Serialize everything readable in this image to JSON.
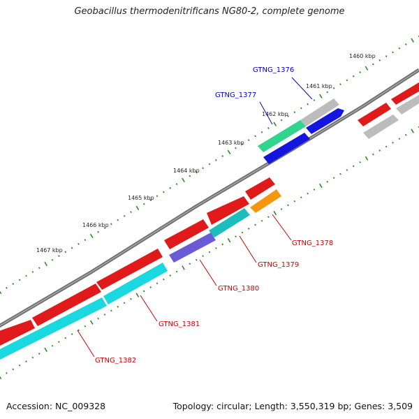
{
  "title": "Geobacillus thermodenitrificans NG80-2, complete genome",
  "footer": {
    "accession": "Accession: NC_009328",
    "summary": "Topology: circular; Length: 3,550,319 bp; Genes: 3,509"
  },
  "colors": {
    "backbone": "#7a7a7a",
    "tick_dots": "#2e8b22",
    "label_forward": "#0000cc",
    "label_reverse": "#cc0000"
  },
  "chart_data": {
    "type": "genome_map",
    "scale_labels": [
      "1460 kbp",
      "1461 kbp",
      "1462 kbp",
      "1463 kbp",
      "1464 kbp",
      "1465 kbp",
      "1466 kbp",
      "1467 kbp"
    ],
    "labeled_genes": [
      {
        "name": "GTNG_1376",
        "strand": "+"
      },
      {
        "name": "GTNG_1377",
        "strand": "+"
      },
      {
        "name": "GTNG_1378",
        "strand": "-"
      },
      {
        "name": "GTNG_1379",
        "strand": "-"
      },
      {
        "name": "GTNG_1380",
        "strand": "-"
      },
      {
        "name": "GTNG_1381",
        "strand": "-"
      },
      {
        "name": "GTNG_1382",
        "strand": "-"
      }
    ]
  }
}
